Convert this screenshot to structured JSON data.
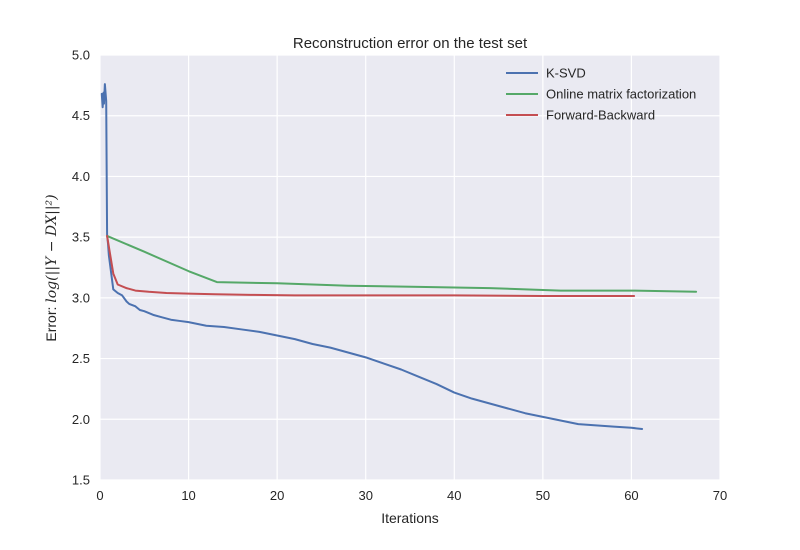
{
  "chart_data": {
    "type": "line",
    "title": "Reconstruction error on the test set",
    "xlabel": "Iterations",
    "ylabel_prefix": "Error: ",
    "ylabel_math": "log(||Y − DX||²)",
    "xlim": [
      0,
      70
    ],
    "ylim": [
      1.5,
      5.0
    ],
    "x_ticks": [
      "0",
      "10",
      "20",
      "30",
      "40",
      "50",
      "60",
      "70"
    ],
    "y_ticks": [
      "1.5",
      "2.0",
      "2.5",
      "3.0",
      "3.5",
      "4.0",
      "4.5",
      "5.0"
    ],
    "grid": true,
    "legend_position": "top-right",
    "series": [
      {
        "name": "K-SVD",
        "color": "#4c72b0",
        "x": [
          0.2,
          0.3,
          0.4,
          0.45,
          0.55,
          0.7,
          0.8,
          0.9,
          1.0,
          1.5,
          2.0,
          2.5,
          3.0,
          3.3,
          4.0,
          4.5,
          5.0,
          6.0,
          7.0,
          8.0,
          9.0,
          10.0,
          12.0,
          14.0,
          16.0,
          18.0,
          20.0,
          22.0,
          24.0,
          26.0,
          28.0,
          30.0,
          32.0,
          34.0,
          36.0,
          38.0,
          40.0,
          42.0,
          44.0,
          46.0,
          48.0,
          50.0,
          52.0,
          54.0,
          56.0,
          58.0,
          60.0,
          61.2
        ],
        "y": [
          4.68,
          4.57,
          4.69,
          4.6,
          4.76,
          4.62,
          3.52,
          3.45,
          3.35,
          3.07,
          3.04,
          3.02,
          2.97,
          2.95,
          2.93,
          2.9,
          2.89,
          2.86,
          2.84,
          2.82,
          2.81,
          2.8,
          2.77,
          2.76,
          2.74,
          2.72,
          2.69,
          2.66,
          2.62,
          2.59,
          2.55,
          2.51,
          2.46,
          2.41,
          2.35,
          2.29,
          2.22,
          2.17,
          2.13,
          2.09,
          2.05,
          2.02,
          1.99,
          1.96,
          1.95,
          1.94,
          1.93,
          1.92
        ]
      },
      {
        "name": "Online matrix factorization",
        "color": "#55a868",
        "x": [
          0.8,
          5.0,
          10.0,
          13.2,
          20.0,
          28.0,
          36.0,
          44.0,
          52.0,
          60.0,
          67.3
        ],
        "y": [
          3.51,
          3.38,
          3.22,
          3.13,
          3.12,
          3.1,
          3.09,
          3.08,
          3.06,
          3.06,
          3.05
        ]
      },
      {
        "name": "Forward-Backward",
        "color": "#c44e52",
        "x": [
          0.8,
          1.5,
          2.0,
          3.0,
          4.0,
          5.5,
          7.5,
          10.0,
          13.0,
          17.0,
          22.0,
          30.0,
          40.0,
          50.0,
          60.3
        ],
        "y": [
          3.51,
          3.2,
          3.11,
          3.08,
          3.06,
          3.05,
          3.04,
          3.035,
          3.03,
          3.025,
          3.02,
          3.02,
          3.02,
          3.015,
          3.015
        ]
      }
    ]
  }
}
